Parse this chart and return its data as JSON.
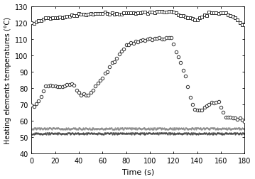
{
  "title": "",
  "xlabel": "Time (s)",
  "ylabel": "Heating elements temperatures (°C)",
  "xlim": [
    0,
    180
  ],
  "ylim": [
    40,
    130
  ],
  "yticks": [
    40,
    50,
    60,
    70,
    80,
    90,
    100,
    110,
    120,
    130
  ],
  "xticks": [
    0,
    20,
    40,
    60,
    80,
    100,
    120,
    140,
    160,
    180
  ],
  "background_color": "#ffffff"
}
